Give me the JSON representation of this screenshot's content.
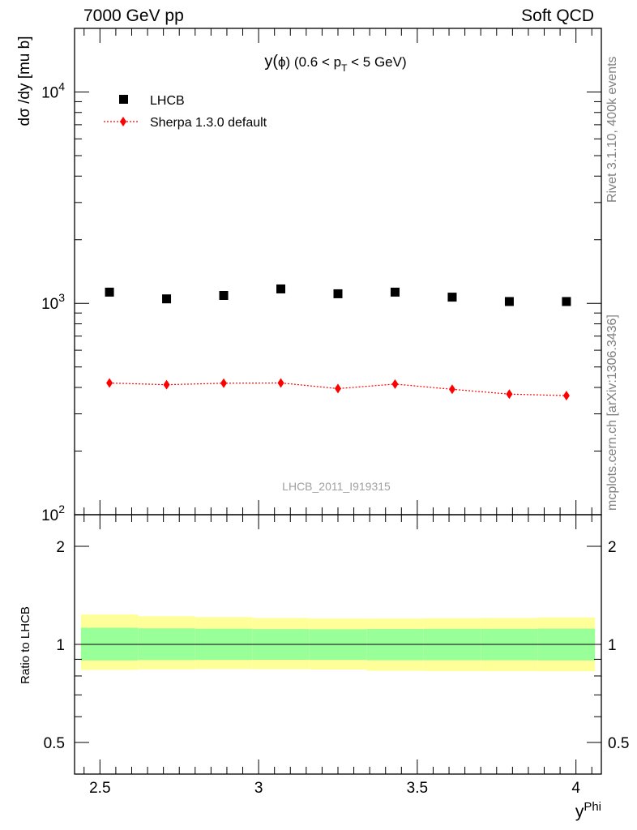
{
  "header": {
    "left": "7000 GeV pp",
    "right": "Soft QCD"
  },
  "side_labels": {
    "rivet": "Rivet 3.1.10,  400k events",
    "mcplots": "mcplots.cern.ch [arXiv:1306.3436]"
  },
  "watermark": "LHCB_2011_I919315",
  "colors": {
    "data": "#000000",
    "mc": "#ff0000",
    "band_inner": "#99ff99",
    "band_outer": "#ffff99"
  },
  "chart_data": [
    {
      "type": "scatter",
      "title_parts": {
        "main": "y(",
        "phi": "ϕ",
        "mid": ") (0.6 < p",
        "sub": "T",
        "end": " < 5 GeV)"
      },
      "ylabel": "dσ /dy [mu b]",
      "yscale": "log",
      "ylim": [
        100,
        20000
      ],
      "xlim": [
        2.42,
        4.08
      ],
      "yticks": [
        {
          "base": "10",
          "exp": "2"
        },
        {
          "base": "10",
          "exp": "3"
        },
        {
          "base": "10",
          "exp": "4"
        }
      ],
      "legend": {
        "placement": "top-left",
        "entries": [
          "LHCB",
          "Sherpa 1.3.0 default"
        ]
      },
      "x": [
        2.53,
        2.71,
        2.89,
        3.07,
        3.25,
        3.43,
        3.61,
        3.79,
        3.97
      ],
      "series": [
        {
          "name": "LHCB",
          "marker": "square",
          "values": [
            1130,
            1050,
            1090,
            1170,
            1110,
            1130,
            1070,
            1020,
            1020
          ]
        },
        {
          "name": "Sherpa 1.3.0 default",
          "marker": "diamond",
          "line": "dotted",
          "values": [
            420,
            412,
            419,
            420,
            395,
            415,
            392,
            372,
            366
          ]
        }
      ]
    },
    {
      "type": "area",
      "ylabel": "Ratio to LHCB",
      "xlabel_base": "y",
      "xlabel_sup": "Phi",
      "yscale": "log",
      "ylim": [
        0.4,
        2.5
      ],
      "yticks": [
        "0.5",
        "1",
        "2"
      ],
      "xticks": [
        "2.5",
        "3",
        "3.5",
        "4"
      ],
      "bin_edges": [
        2.44,
        2.62,
        2.8,
        2.98,
        3.16,
        3.34,
        3.52,
        3.7,
        3.88,
        4.06
      ],
      "band_inner_lo": [
        0.893,
        0.895,
        0.896,
        0.897,
        0.896,
        0.894,
        0.894,
        0.894,
        0.893
      ],
      "band_inner_hi": [
        1.125,
        1.12,
        1.117,
        1.114,
        1.113,
        1.115,
        1.116,
        1.116,
        1.118
      ],
      "band_outer_lo": [
        0.835,
        0.838,
        0.84,
        0.839,
        0.837,
        0.83,
        0.828,
        0.828,
        0.827
      ],
      "band_outer_hi": [
        1.235,
        1.22,
        1.213,
        1.205,
        1.2,
        1.2,
        1.203,
        1.205,
        1.21
      ],
      "reference": 1
    }
  ]
}
